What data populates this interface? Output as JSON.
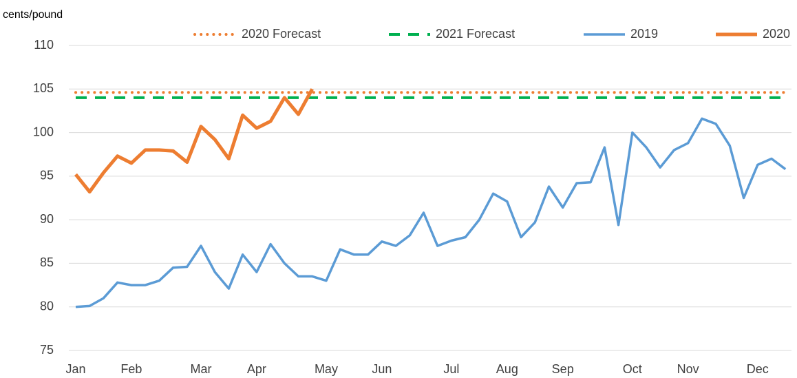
{
  "chart_data": {
    "type": "line",
    "y_label": "cents/pound",
    "categories": [
      "Jan",
      null,
      null,
      null,
      "Feb",
      null,
      null,
      null,
      null,
      "Mar",
      null,
      null,
      null,
      "Apr",
      null,
      null,
      null,
      null,
      "May",
      null,
      null,
      null,
      "Jun",
      null,
      null,
      null,
      null,
      "Jul",
      null,
      null,
      null,
      "Aug",
      null,
      null,
      null,
      "Sep",
      null,
      null,
      null,
      null,
      "Oct",
      null,
      null,
      null,
      "Nov",
      null,
      null,
      null,
      null,
      "Dec",
      null,
      null
    ],
    "series": [
      {
        "name": "2020 Forecast",
        "color": "#ED7D31",
        "style": "dotted",
        "values": [
          104.6,
          104.6,
          104.6,
          104.6,
          104.6,
          104.6,
          104.6,
          104.6,
          104.6,
          104.6,
          104.6,
          104.6,
          104.6,
          104.6,
          104.6,
          104.6,
          104.6,
          104.6,
          104.6,
          104.6,
          104.6,
          104.6,
          104.6,
          104.6,
          104.6,
          104.6,
          104.6,
          104.6,
          104.6,
          104.6,
          104.6,
          104.6,
          104.6,
          104.6,
          104.6,
          104.6,
          104.6,
          104.6,
          104.6,
          104.6,
          104.6,
          104.6,
          104.6,
          104.6,
          104.6,
          104.6,
          104.6,
          104.6,
          104.6,
          104.6,
          104.6,
          104.6
        ]
      },
      {
        "name": "2021 Forecast",
        "color": "#00B050",
        "style": "dashed",
        "values": [
          104,
          104,
          104,
          104,
          104,
          104,
          104,
          104,
          104,
          104,
          104,
          104,
          104,
          104,
          104,
          104,
          104,
          104,
          104,
          104,
          104,
          104,
          104,
          104,
          104,
          104,
          104,
          104,
          104,
          104,
          104,
          104,
          104,
          104,
          104,
          104,
          104,
          104,
          104,
          104,
          104,
          104,
          104,
          104,
          104,
          104,
          104,
          104,
          104,
          104,
          104,
          104
        ]
      },
      {
        "name": "2019",
        "color": "#5B9BD5",
        "style": "solid",
        "values": [
          80,
          80.1,
          81,
          82.8,
          82.5,
          82.5,
          83,
          84.5,
          84.6,
          87,
          84,
          82.1,
          86,
          84,
          87.2,
          85,
          83.5,
          83.5,
          83,
          86.6,
          86,
          86,
          87.5,
          87,
          88.2,
          90.8,
          87,
          87.6,
          88,
          90,
          93,
          92.1,
          88,
          89.7,
          93.8,
          91.4,
          94.2,
          94.3,
          98.3,
          89.4,
          100,
          98.3,
          96,
          98,
          98.8,
          101.6,
          101,
          98.5,
          92.5,
          96.3,
          97,
          95.8
        ]
      },
      {
        "name": "2020",
        "color": "#ED7D31",
        "style": "thick",
        "values": [
          95.2,
          93.2,
          95.4,
          97.3,
          96.5,
          98,
          98,
          97.9,
          96.6,
          100.7,
          99.2,
          97,
          102,
          100.5,
          101.3,
          104,
          102.1,
          105,
          null,
          null,
          null,
          null,
          null,
          null,
          null,
          null,
          null,
          null,
          null,
          null,
          null,
          null,
          null,
          null,
          null,
          null,
          null,
          null,
          null,
          null,
          null,
          null,
          null,
          null,
          null,
          null,
          null,
          null,
          null,
          null,
          null,
          null
        ]
      }
    ],
    "ylim": [
      75,
      110
    ],
    "yticks": [
      75,
      80,
      85,
      90,
      95,
      100,
      105,
      110
    ],
    "grid": true
  }
}
